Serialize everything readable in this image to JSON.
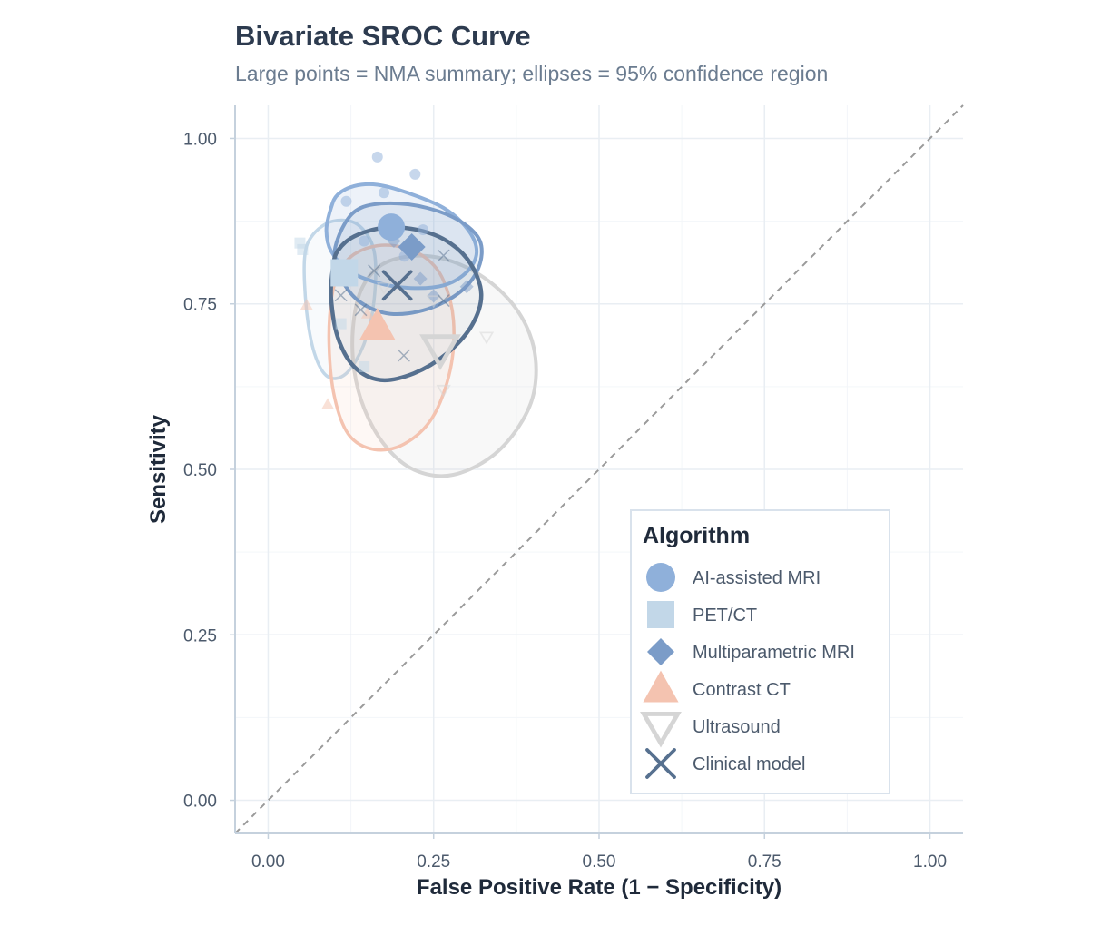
{
  "chart_data": {
    "type": "scatter",
    "title": "Bivariate SROC Curve",
    "subtitle": "Large points = NMA summary; ellipses = 95% confidence region",
    "xlabel": "False Positive Rate (1 − Specificity)",
    "ylabel": "Sensitivity",
    "xlim": [
      -0.05,
      1.05
    ],
    "ylim": [
      -0.05,
      1.05
    ],
    "xticks": [
      0.0,
      0.25,
      0.5,
      0.75,
      1.0
    ],
    "yticks": [
      0.0,
      0.25,
      0.5,
      0.75,
      1.0
    ],
    "xtick_labels": [
      "0.00",
      "0.25",
      "0.50",
      "0.75",
      "1.00"
    ],
    "ytick_labels": [
      "0.00",
      "0.25",
      "0.50",
      "0.75",
      "1.00"
    ],
    "grid": true,
    "reference_line": {
      "style": "dashed",
      "from": [
        0,
        0
      ],
      "to": [
        1,
        1
      ]
    },
    "legend": {
      "title": "Algorithm",
      "position": "bottom-right"
    },
    "series": [
      {
        "name": "AI-assisted MRI",
        "marker": "circle",
        "color": "#8fb0da",
        "summary": [
          0.186,
          0.866
        ],
        "studies": [
          [
            0.165,
            0.972
          ],
          [
            0.222,
            0.946
          ],
          [
            0.175,
            0.918
          ],
          [
            0.118,
            0.905
          ],
          [
            0.234,
            0.862
          ],
          [
            0.145,
            0.845
          ],
          [
            0.206,
            0.822
          ]
        ],
        "ellipse": [
          [
            0.095,
            0.895
          ],
          [
            0.105,
            0.915
          ],
          [
            0.13,
            0.928
          ],
          [
            0.165,
            0.93
          ],
          [
            0.21,
            0.918
          ],
          [
            0.265,
            0.895
          ],
          [
            0.302,
            0.862
          ],
          [
            0.315,
            0.828
          ],
          [
            0.3,
            0.798
          ],
          [
            0.265,
            0.778
          ],
          [
            0.215,
            0.774
          ],
          [
            0.165,
            0.782
          ],
          [
            0.122,
            0.8
          ],
          [
            0.095,
            0.83
          ],
          [
            0.088,
            0.862
          ]
        ]
      },
      {
        "name": "PET/CT",
        "marker": "square",
        "color": "#c2d7e8",
        "summary": [
          0.115,
          0.797
        ],
        "studies": [
          [
            0.048,
            0.842
          ],
          [
            0.052,
            0.832
          ],
          [
            0.11,
            0.72
          ],
          [
            0.145,
            0.655
          ]
        ],
        "ellipse": [
          [
            0.055,
            0.82
          ],
          [
            0.068,
            0.855
          ],
          [
            0.098,
            0.875
          ],
          [
            0.135,
            0.87
          ],
          [
            0.16,
            0.83
          ],
          [
            0.16,
            0.755
          ],
          [
            0.145,
            0.69
          ],
          [
            0.118,
            0.645
          ],
          [
            0.09,
            0.64
          ],
          [
            0.07,
            0.675
          ],
          [
            0.058,
            0.74
          ]
        ]
      },
      {
        "name": "Multiparametric MRI",
        "marker": "diamond",
        "color": "#7b9cc8",
        "summary": [
          0.217,
          0.836
        ],
        "studies": [
          [
            0.23,
            0.788
          ],
          [
            0.3,
            0.776
          ],
          [
            0.19,
            0.845
          ],
          [
            0.25,
            0.762
          ]
        ],
        "ellipse": [
          [
            0.115,
            0.87
          ],
          [
            0.14,
            0.895
          ],
          [
            0.185,
            0.902
          ],
          [
            0.24,
            0.895
          ],
          [
            0.29,
            0.875
          ],
          [
            0.32,
            0.845
          ],
          [
            0.318,
            0.805
          ],
          [
            0.29,
            0.768
          ],
          [
            0.24,
            0.742
          ],
          [
            0.185,
            0.735
          ],
          [
            0.14,
            0.752
          ],
          [
            0.112,
            0.785
          ],
          [
            0.1,
            0.825
          ]
        ]
      },
      {
        "name": "Contrast CT",
        "marker": "triangle-up",
        "color": "#f4c3b0",
        "summary": [
          0.165,
          0.716
        ],
        "studies": [
          [
            0.058,
            0.748
          ],
          [
            0.09,
            0.598
          ],
          [
            0.15,
            0.735
          ]
        ],
        "ellipse": [
          [
            0.108,
            0.8
          ],
          [
            0.13,
            0.825
          ],
          [
            0.165,
            0.838
          ],
          [
            0.205,
            0.835
          ],
          [
            0.24,
            0.818
          ],
          [
            0.265,
            0.785
          ],
          [
            0.28,
            0.725
          ],
          [
            0.275,
            0.65
          ],
          [
            0.248,
            0.578
          ],
          [
            0.205,
            0.538
          ],
          [
            0.16,
            0.53
          ],
          [
            0.122,
            0.552
          ],
          [
            0.1,
            0.61
          ],
          [
            0.092,
            0.69
          ],
          [
            0.096,
            0.76
          ]
        ]
      },
      {
        "name": "Ultrasound",
        "marker": "triangle-down",
        "color": "#d5d5d5",
        "summary": [
          0.26,
          0.682
        ],
        "studies": [
          [
            0.175,
            0.775
          ],
          [
            0.25,
            0.755
          ],
          [
            0.33,
            0.7
          ],
          [
            0.265,
            0.62
          ]
        ],
        "ellipse": [
          [
            0.14,
            0.77
          ],
          [
            0.17,
            0.808
          ],
          [
            0.215,
            0.822
          ],
          [
            0.265,
            0.818
          ],
          [
            0.318,
            0.795
          ],
          [
            0.365,
            0.755
          ],
          [
            0.395,
            0.705
          ],
          [
            0.405,
            0.65
          ],
          [
            0.395,
            0.595
          ],
          [
            0.36,
            0.54
          ],
          [
            0.315,
            0.505
          ],
          [
            0.265,
            0.49
          ],
          [
            0.215,
            0.502
          ],
          [
            0.175,
            0.538
          ],
          [
            0.145,
            0.592
          ],
          [
            0.13,
            0.65
          ],
          [
            0.128,
            0.712
          ]
        ]
      },
      {
        "name": "Clinical model",
        "marker": "x",
        "color": "#56708f",
        "summary": [
          0.195,
          0.778
        ],
        "studies": [
          [
            0.265,
            0.823
          ],
          [
            0.11,
            0.763
          ],
          [
            0.265,
            0.755
          ],
          [
            0.205,
            0.672
          ],
          [
            0.16,
            0.8
          ],
          [
            0.14,
            0.741
          ]
        ],
        "ellipse": [
          [
            0.105,
            0.83
          ],
          [
            0.13,
            0.852
          ],
          [
            0.175,
            0.865
          ],
          [
            0.225,
            0.862
          ],
          [
            0.27,
            0.845
          ],
          [
            0.305,
            0.812
          ],
          [
            0.322,
            0.765
          ],
          [
            0.308,
            0.718
          ],
          [
            0.27,
            0.675
          ],
          [
            0.22,
            0.645
          ],
          [
            0.17,
            0.635
          ],
          [
            0.13,
            0.655
          ],
          [
            0.105,
            0.7
          ],
          [
            0.095,
            0.76
          ],
          [
            0.098,
            0.805
          ]
        ]
      }
    ]
  }
}
